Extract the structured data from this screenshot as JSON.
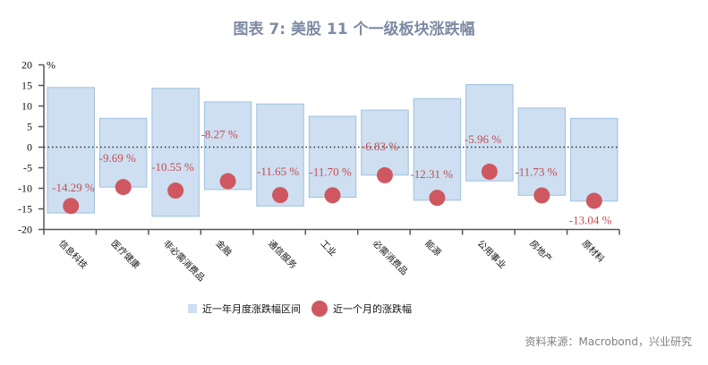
{
  "title": "图表 7:  美股 11 个一级板块涨跌幅",
  "source": "资料来源：Macrobond，兴业研究",
  "legend": {
    "range_label": "近一年月度涨跌幅区间",
    "point_label": "近一个月的涨跌幅"
  },
  "colors": {
    "bar_fill": "#cddff0",
    "bar_stroke": "#9fc1e0",
    "point": "#cf5760",
    "label": "#c84b52",
    "title": "#7d8ba3"
  },
  "chart_data": {
    "type": "bar",
    "title": "美股 11 个一级板块涨跌幅",
    "ylabel": "%",
    "ylim": [
      -20,
      20
    ],
    "yticks": [
      20,
      15,
      10,
      5,
      0,
      -5,
      -10,
      -15,
      -20
    ],
    "grid": false,
    "legend_position": "bottom",
    "categories": [
      "信息科技",
      "医疗健康",
      "非必需消费品",
      "金融",
      "通信服务",
      "工业",
      "必需消费品",
      "能源",
      "公用事业",
      "房地产",
      "原材料"
    ],
    "series": [
      {
        "name": "近一年月度涨跌幅区间 (max)",
        "values": [
          14.5,
          7.0,
          14.3,
          11.0,
          10.5,
          7.5,
          9.0,
          11.8,
          15.2,
          9.5,
          7.0
        ]
      },
      {
        "name": "近一年月度涨跌幅区间 (min)",
        "values": [
          -16.0,
          -9.7,
          -16.8,
          -10.3,
          -14.3,
          -12.2,
          -6.8,
          -12.9,
          -8.2,
          -11.7,
          -13.1
        ]
      },
      {
        "name": "近一个月的涨跌幅",
        "values": [
          -14.29,
          -9.69,
          -10.55,
          -8.27,
          -11.65,
          -11.7,
          -6.83,
          -12.31,
          -5.96,
          -11.73,
          -13.04
        ]
      }
    ],
    "point_labels": [
      "-14.29 %",
      "-9.69 %",
      "-10.55 %",
      "-8.27 %",
      "-11.65 %",
      "-11.70 %",
      "-6.83 %",
      "-12.31 %",
      "-5.96 %",
      "-11.73 %",
      "-13.04 %"
    ]
  }
}
